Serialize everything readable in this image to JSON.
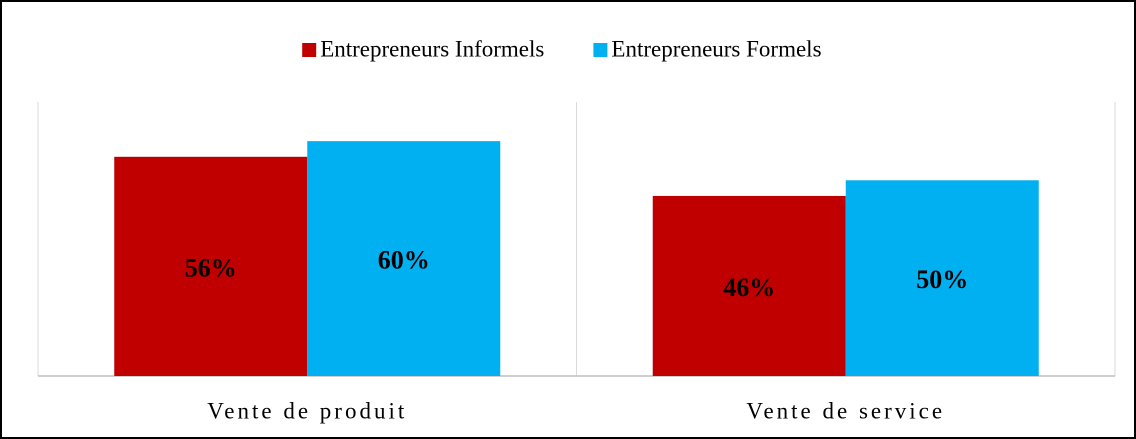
{
  "chart_data": {
    "type": "bar",
    "categories": [
      "Vente de produit",
      "Vente de service"
    ],
    "series": [
      {
        "name": "Entrepreneurs Informels",
        "color": "#c00000",
        "values": [
          56,
          46
        ],
        "value_labels": [
          "56%",
          "46%"
        ]
      },
      {
        "name": "Entrepreneurs Formels",
        "color": "#00b0f0",
        "values": [
          60,
          50
        ],
        "value_labels": [
          "60%",
          "50%"
        ]
      }
    ],
    "ylim": [
      0,
      70
    ],
    "legend": "top"
  }
}
